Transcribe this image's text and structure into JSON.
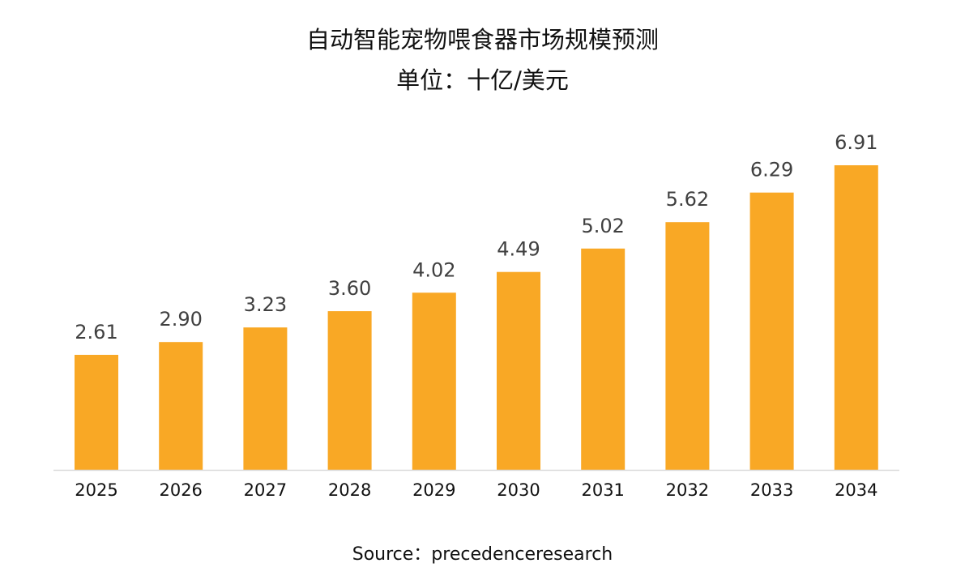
{
  "chart_data": {
    "type": "bar",
    "title": "自动智能宠物喂食器市场规模预测",
    "subtitle": "单位：十亿/美元",
    "categories": [
      "2025",
      "2026",
      "2027",
      "2028",
      "2029",
      "2030",
      "2031",
      "2032",
      "2033",
      "2034"
    ],
    "values": [
      2.61,
      2.9,
      3.23,
      3.6,
      4.02,
      4.49,
      5.02,
      5.62,
      6.29,
      6.91
    ],
    "value_labels": [
      "2.61",
      "2.90",
      "3.23",
      "3.60",
      "4.02",
      "4.49",
      "5.02",
      "5.62",
      "6.29",
      "6.91"
    ],
    "xlabel": "",
    "ylabel": "",
    "ylim": [
      0,
      6.91
    ],
    "grid": false,
    "legend": "none",
    "bar_color": "#F9A825",
    "axis_color": "#D9D9D9",
    "source": "Source：precedenceresearch"
  }
}
